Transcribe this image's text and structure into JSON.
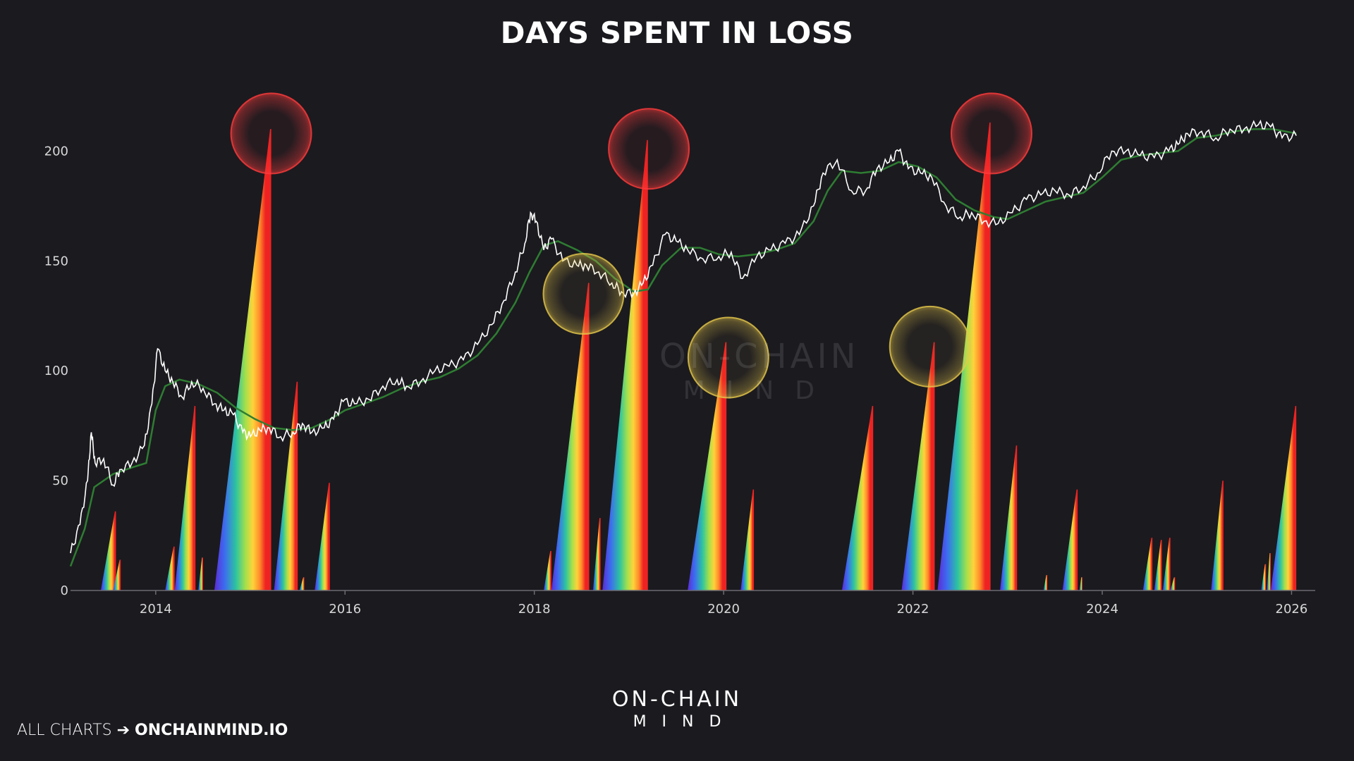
{
  "title": "DAYS SPENT IN LOSS",
  "footer": {
    "prefix": "ALL CHARTS",
    "arrow": "➔",
    "url": "ONCHAINMIND.IO"
  },
  "brand": {
    "line1": "ON-CHAIN",
    "line2": "MIND"
  },
  "watermark": {
    "line1": "ON-CHAIN",
    "line2": "MIND"
  },
  "colors": {
    "background": "#1b1a1f",
    "price_line": "#ffffff",
    "moving_average": "#2e7d32",
    "highlight_red": "#ff3b3b",
    "highlight_yellow": "#e6c84a",
    "spike_gradient": [
      "#5b2bd6",
      "#3d6cf0",
      "#2cc4a0",
      "#a6e04a",
      "#ffd23a",
      "#ff8a2a",
      "#ee2222"
    ]
  },
  "chart_data": {
    "type": "area",
    "title": "DAYS SPENT IN LOSS",
    "x_range": [
      2013.1,
      2026.25
    ],
    "ylim": [
      0,
      220
    ],
    "yticks": [
      0,
      50,
      100,
      150,
      200
    ],
    "xticks": [
      2014,
      2016,
      2018,
      2020,
      2022,
      2024,
      2026
    ],
    "grid": false,
    "series": [
      {
        "type": "spikes",
        "note_values_in": "days",
        "points": [
          {
            "x0": 2013.42,
            "x1": 2013.58,
            "peak": 36
          },
          {
            "x0": 2013.55,
            "x1": 2013.63,
            "peak": 14
          },
          {
            "x0": 2014.1,
            "x1": 2014.2,
            "peak": 20
          },
          {
            "x0": 2014.2,
            "x1": 2014.42,
            "peak": 84
          },
          {
            "x0": 2014.45,
            "x1": 2014.5,
            "peak": 15
          },
          {
            "x0": 2014.62,
            "x1": 2015.22,
            "peak": 210
          },
          {
            "x0": 2015.25,
            "x1": 2015.5,
            "peak": 95
          },
          {
            "x0": 2015.52,
            "x1": 2015.57,
            "peak": 6
          },
          {
            "x0": 2015.68,
            "x1": 2015.84,
            "peak": 49
          },
          {
            "x0": 2018.1,
            "x1": 2018.18,
            "peak": 18
          },
          {
            "x0": 2018.18,
            "x1": 2018.58,
            "peak": 140
          },
          {
            "x0": 2018.62,
            "x1": 2018.7,
            "peak": 33
          },
          {
            "x0": 2018.72,
            "x1": 2019.2,
            "peak": 205
          },
          {
            "x0": 2019.62,
            "x1": 2020.03,
            "peak": 113
          },
          {
            "x0": 2020.18,
            "x1": 2020.32,
            "peak": 46
          },
          {
            "x0": 2021.25,
            "x1": 2021.58,
            "peak": 84
          },
          {
            "x0": 2021.88,
            "x1": 2022.23,
            "peak": 113
          },
          {
            "x0": 2022.26,
            "x1": 2022.82,
            "peak": 213
          },
          {
            "x0": 2022.92,
            "x1": 2023.1,
            "peak": 66
          },
          {
            "x0": 2023.38,
            "x1": 2023.42,
            "peak": 7
          },
          {
            "x0": 2023.58,
            "x1": 2023.74,
            "peak": 46
          },
          {
            "x0": 2023.76,
            "x1": 2023.79,
            "peak": 6
          },
          {
            "x0": 2024.43,
            "x1": 2024.53,
            "peak": 24
          },
          {
            "x0": 2024.55,
            "x1": 2024.63,
            "peak": 23
          },
          {
            "x0": 2024.64,
            "x1": 2024.72,
            "peak": 24
          },
          {
            "x0": 2024.72,
            "x1": 2024.77,
            "peak": 6
          },
          {
            "x0": 2025.15,
            "x1": 2025.28,
            "peak": 50
          },
          {
            "x0": 2025.68,
            "x1": 2025.73,
            "peak": 12
          },
          {
            "x0": 2025.74,
            "x1": 2025.78,
            "peak": 17
          },
          {
            "x0": 2025.78,
            "x1": 2026.05,
            "peak": 84
          }
        ]
      },
      {
        "type": "price_line",
        "points": [
          [
            2013.1,
            17
          ],
          [
            2013.2,
            30
          ],
          [
            2013.28,
            50
          ],
          [
            2013.32,
            72
          ],
          [
            2013.36,
            58
          ],
          [
            2013.45,
            60
          ],
          [
            2013.55,
            48
          ],
          [
            2013.62,
            55
          ],
          [
            2013.75,
            58
          ],
          [
            2013.88,
            66
          ],
          [
            2013.96,
            85
          ],
          [
            2014.02,
            110
          ],
          [
            2014.1,
            100
          ],
          [
            2014.18,
            95
          ],
          [
            2014.28,
            88
          ],
          [
            2014.38,
            95
          ],
          [
            2014.5,
            92
          ],
          [
            2014.62,
            85
          ],
          [
            2014.72,
            82
          ],
          [
            2014.82,
            80
          ],
          [
            2014.92,
            72
          ],
          [
            2015.0,
            70
          ],
          [
            2015.1,
            73
          ],
          [
            2015.2,
            74
          ],
          [
            2015.32,
            70
          ],
          [
            2015.45,
            72
          ],
          [
            2015.55,
            76
          ],
          [
            2015.65,
            72
          ],
          [
            2015.78,
            74
          ],
          [
            2015.88,
            78
          ],
          [
            2015.98,
            86
          ],
          [
            2016.1,
            85
          ],
          [
            2016.25,
            87
          ],
          [
            2016.4,
            93
          ],
          [
            2016.55,
            96
          ],
          [
            2016.65,
            93
          ],
          [
            2016.8,
            95
          ],
          [
            2016.95,
            100
          ],
          [
            2017.1,
            102
          ],
          [
            2017.25,
            105
          ],
          [
            2017.4,
            112
          ],
          [
            2017.55,
            121
          ],
          [
            2017.68,
            132
          ],
          [
            2017.8,
            145
          ],
          [
            2017.9,
            158
          ],
          [
            2017.96,
            172
          ],
          [
            2018.02,
            168
          ],
          [
            2018.1,
            155
          ],
          [
            2018.18,
            160
          ],
          [
            2018.3,
            150
          ],
          [
            2018.45,
            148
          ],
          [
            2018.55,
            148
          ],
          [
            2018.68,
            145
          ],
          [
            2018.82,
            140
          ],
          [
            2018.92,
            136
          ],
          [
            2019.05,
            135
          ],
          [
            2019.15,
            140
          ],
          [
            2019.25,
            148
          ],
          [
            2019.38,
            162
          ],
          [
            2019.5,
            159
          ],
          [
            2019.62,
            155
          ],
          [
            2019.78,
            151
          ],
          [
            2019.95,
            152
          ],
          [
            2020.08,
            154
          ],
          [
            2020.2,
            142
          ],
          [
            2020.35,
            152
          ],
          [
            2020.5,
            155
          ],
          [
            2020.65,
            158
          ],
          [
            2020.8,
            162
          ],
          [
            2020.95,
            175
          ],
          [
            2021.05,
            190
          ],
          [
            2021.2,
            196
          ],
          [
            2021.35,
            182
          ],
          [
            2021.5,
            182
          ],
          [
            2021.62,
            192
          ],
          [
            2021.75,
            195
          ],
          [
            2021.85,
            200
          ],
          [
            2021.95,
            192
          ],
          [
            2022.08,
            190
          ],
          [
            2022.2,
            188
          ],
          [
            2022.35,
            175
          ],
          [
            2022.5,
            170
          ],
          [
            2022.62,
            172
          ],
          [
            2022.75,
            168
          ],
          [
            2022.9,
            167
          ],
          [
            2023.05,
            172
          ],
          [
            2023.2,
            178
          ],
          [
            2023.35,
            180
          ],
          [
            2023.5,
            182
          ],
          [
            2023.65,
            180
          ],
          [
            2023.8,
            184
          ],
          [
            2023.95,
            190
          ],
          [
            2024.1,
            200
          ],
          [
            2024.25,
            200
          ],
          [
            2024.4,
            198
          ],
          [
            2024.55,
            197
          ],
          [
            2024.7,
            200
          ],
          [
            2024.8,
            203
          ],
          [
            2024.9,
            208
          ],
          [
            2025.05,
            209
          ],
          [
            2025.2,
            206
          ],
          [
            2025.35,
            210
          ],
          [
            2025.5,
            210
          ],
          [
            2025.65,
            212
          ],
          [
            2025.78,
            211
          ],
          [
            2025.9,
            206
          ],
          [
            2026.05,
            207
          ]
        ]
      },
      {
        "type": "moving_average",
        "points": [
          [
            2013.1,
            11
          ],
          [
            2013.25,
            28
          ],
          [
            2013.35,
            47
          ],
          [
            2013.55,
            53
          ],
          [
            2013.75,
            56
          ],
          [
            2013.9,
            58
          ],
          [
            2014.0,
            82
          ],
          [
            2014.1,
            93
          ],
          [
            2014.25,
            96
          ],
          [
            2014.45,
            94
          ],
          [
            2014.65,
            90
          ],
          [
            2014.85,
            83
          ],
          [
            2015.05,
            78
          ],
          [
            2015.25,
            74
          ],
          [
            2015.45,
            73
          ],
          [
            2015.65,
            74
          ],
          [
            2015.85,
            78
          ],
          [
            2016.0,
            82
          ],
          [
            2016.2,
            85
          ],
          [
            2016.4,
            88
          ],
          [
            2016.6,
            92
          ],
          [
            2016.8,
            95
          ],
          [
            2017.0,
            97
          ],
          [
            2017.2,
            101
          ],
          [
            2017.4,
            107
          ],
          [
            2017.6,
            117
          ],
          [
            2017.8,
            131
          ],
          [
            2017.95,
            145
          ],
          [
            2018.1,
            157
          ],
          [
            2018.25,
            159
          ],
          [
            2018.45,
            155
          ],
          [
            2018.65,
            150
          ],
          [
            2018.85,
            142
          ],
          [
            2019.05,
            136
          ],
          [
            2019.2,
            137
          ],
          [
            2019.35,
            148
          ],
          [
            2019.55,
            156
          ],
          [
            2019.75,
            156
          ],
          [
            2019.95,
            153
          ],
          [
            2020.15,
            152
          ],
          [
            2020.35,
            153
          ],
          [
            2020.55,
            155
          ],
          [
            2020.75,
            158
          ],
          [
            2020.95,
            168
          ],
          [
            2021.1,
            182
          ],
          [
            2021.25,
            191
          ],
          [
            2021.45,
            190
          ],
          [
            2021.65,
            191
          ],
          [
            2021.85,
            195
          ],
          [
            2022.05,
            193
          ],
          [
            2022.25,
            188
          ],
          [
            2022.45,
            178
          ],
          [
            2022.65,
            173
          ],
          [
            2022.85,
            170
          ],
          [
            2023.0,
            169
          ],
          [
            2023.2,
            173
          ],
          [
            2023.4,
            177
          ],
          [
            2023.6,
            179
          ],
          [
            2023.8,
            181
          ],
          [
            2024.0,
            188
          ],
          [
            2024.2,
            196
          ],
          [
            2024.4,
            198
          ],
          [
            2024.6,
            199
          ],
          [
            2024.8,
            200
          ],
          [
            2025.0,
            206
          ],
          [
            2025.2,
            207
          ],
          [
            2025.4,
            209
          ],
          [
            2025.6,
            210
          ],
          [
            2025.8,
            210
          ],
          [
            2026.05,
            208
          ]
        ]
      }
    ],
    "highlights": [
      {
        "color": "red",
        "x": 2015.22,
        "y": 208
      },
      {
        "color": "red",
        "x": 2019.21,
        "y": 201
      },
      {
        "color": "red",
        "x": 2022.83,
        "y": 208
      },
      {
        "color": "yellow",
        "x": 2018.52,
        "y": 135
      },
      {
        "color": "yellow",
        "x": 2020.05,
        "y": 106
      },
      {
        "color": "yellow",
        "x": 2022.18,
        "y": 111
      }
    ]
  }
}
